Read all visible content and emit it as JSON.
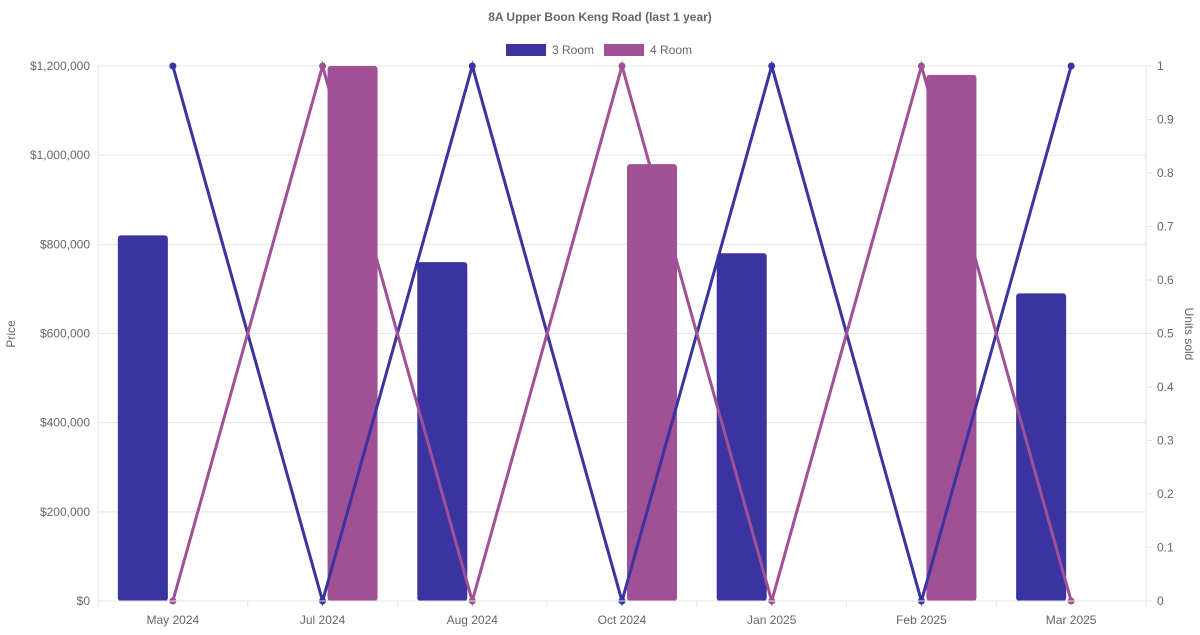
{
  "chart_data": {
    "type": "bar",
    "title": "8A Upper Boon Keng Road (last 1 year)",
    "categories": [
      "May 2024",
      "Jul 2024",
      "Aug 2024",
      "Oct 2024",
      "Jan 2025",
      "Feb 2025",
      "Mar 2025"
    ],
    "ylabel": "Price",
    "y2label": "Units sold",
    "ylim": [
      0,
      1200000
    ],
    "y2lim": [
      0,
      1
    ],
    "yticks": [
      "$0",
      "$200,000",
      "$400,000",
      "$600,000",
      "$800,000",
      "$1,000,000",
      "$1,200,000"
    ],
    "y2ticks": [
      "0",
      "0.1",
      "0.2",
      "0.3",
      "0.4",
      "0.5",
      "0.6",
      "0.7",
      "0.8",
      "0.9",
      "1"
    ],
    "legend_position": "top",
    "grid": true,
    "series": [
      {
        "name": "3 Room",
        "color": "#3a33a0",
        "price": [
          820000,
          null,
          760000,
          null,
          780000,
          null,
          690000
        ],
        "units_sold": [
          1,
          0,
          1,
          0,
          1,
          0,
          1
        ]
      },
      {
        "name": "4 Room",
        "color": "#a05094",
        "price": [
          null,
          1200000,
          null,
          980000,
          null,
          1180000,
          null
        ],
        "units_sold": [
          0,
          1,
          0,
          1,
          0,
          1,
          0
        ]
      }
    ]
  }
}
